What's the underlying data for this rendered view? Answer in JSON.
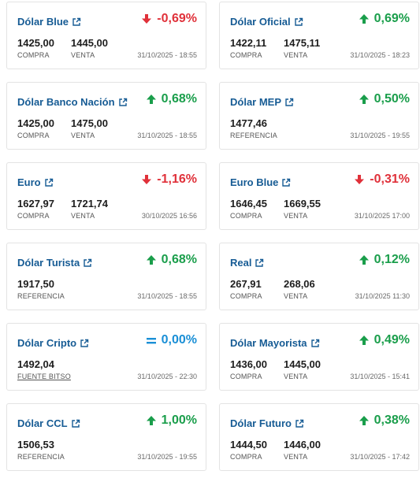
{
  "colors": {
    "up": "#1a9e4b",
    "down": "#e0313a",
    "flat": "#1a8fd6",
    "title": "#165b94"
  },
  "cards": [
    {
      "name": "Dólar Blue",
      "direction": "down",
      "change": "-0,69%",
      "values": [
        {
          "value": "1425,00",
          "label": "COMPRA"
        },
        {
          "value": "1445,00",
          "label": "VENTA"
        }
      ],
      "timestamp": "31/10/2025 - 18:55"
    },
    {
      "name": "Dólar Oficial",
      "direction": "up",
      "change": "0,69%",
      "values": [
        {
          "value": "1422,11",
          "label": "COMPRA"
        },
        {
          "value": "1475,11",
          "label": "VENTA"
        }
      ],
      "timestamp": "31/10/2025 - 18:23"
    },
    {
      "name": "Dólar Banco Nación",
      "direction": "up",
      "change": "0,68%",
      "values": [
        {
          "value": "1425,00",
          "label": "COMPRA"
        },
        {
          "value": "1475,00",
          "label": "VENTA"
        }
      ],
      "timestamp": "31/10/2025 - 18:55"
    },
    {
      "name": "Dólar MEP",
      "direction": "up",
      "change": "0,50%",
      "values": [
        {
          "value": "1477,46",
          "label": "REFERENCIA"
        }
      ],
      "timestamp": "31/10/2025 - 19:55"
    },
    {
      "name": "Euro",
      "direction": "down",
      "change": "-1,16%",
      "values": [
        {
          "value": "1627,97",
          "label": "COMPRA"
        },
        {
          "value": "1721,74",
          "label": "VENTA"
        }
      ],
      "timestamp": "30/10/2025 16:56"
    },
    {
      "name": "Euro Blue",
      "direction": "down",
      "change": "-0,31%",
      "values": [
        {
          "value": "1646,45",
          "label": "COMPRA"
        },
        {
          "value": "1669,55",
          "label": "VENTA"
        }
      ],
      "timestamp": "31/10/2025 17:00"
    },
    {
      "name": "Dólar Turista",
      "direction": "up",
      "change": "0,68%",
      "values": [
        {
          "value": "1917,50",
          "label": "REFERENCIA"
        }
      ],
      "timestamp": "31/10/2025 - 18:55"
    },
    {
      "name": "Real",
      "direction": "up",
      "change": "0,12%",
      "values": [
        {
          "value": "267,91",
          "label": "COMPRA"
        },
        {
          "value": "268,06",
          "label": "VENTA"
        }
      ],
      "timestamp": "31/10/2025 11:30"
    },
    {
      "name": "Dólar Cripto",
      "direction": "flat",
      "change": "0,00%",
      "values": [
        {
          "value": "1492,04",
          "label": "FUENTE BITSO",
          "link": true
        }
      ],
      "timestamp": "31/10/2025 - 22:30"
    },
    {
      "name": "Dólar Mayorista",
      "direction": "up",
      "change": "0,49%",
      "values": [
        {
          "value": "1436,00",
          "label": "COMPRA"
        },
        {
          "value": "1445,00",
          "label": "VENTA"
        }
      ],
      "timestamp": "31/10/2025 - 15:41"
    },
    {
      "name": "Dólar CCL",
      "direction": "up",
      "change": "1,00%",
      "values": [
        {
          "value": "1506,53",
          "label": "REFERENCIA"
        }
      ],
      "timestamp": "31/10/2025 - 19:55"
    },
    {
      "name": "Dólar Futuro",
      "direction": "up",
      "change": "0,38%",
      "values": [
        {
          "value": "1444,50",
          "label": "COMPRA"
        },
        {
          "value": "1446,00",
          "label": "VENTA"
        }
      ],
      "timestamp": "31/10/2025 - 17:42"
    }
  ]
}
